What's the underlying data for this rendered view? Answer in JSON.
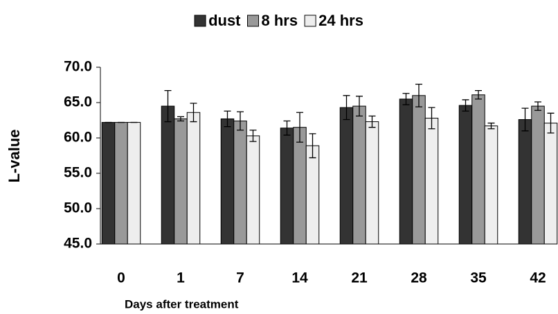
{
  "chart_data": {
    "type": "bar",
    "x_label": "Days after treatment",
    "y_label": "L-value",
    "categories": [
      "0",
      "1",
      "7",
      "14",
      "21",
      "28",
      "35",
      "42"
    ],
    "series": [
      {
        "name": "dust",
        "color": "#333333",
        "values": [
          62.2,
          64.5,
          62.7,
          61.4,
          64.3,
          65.5,
          64.6,
          62.6
        ],
        "errors": [
          0,
          2.2,
          1.1,
          1.0,
          1.7,
          0.8,
          0.8,
          1.6
        ]
      },
      {
        "name": "8 hrs",
        "color": "#999999",
        "values": [
          62.2,
          62.7,
          62.4,
          61.5,
          64.5,
          66.0,
          66.1,
          64.5
        ],
        "errors": [
          0,
          0.3,
          1.3,
          2.1,
          1.4,
          1.6,
          0.6,
          0.6
        ]
      },
      {
        "name": "24 hrs",
        "color": "#eeeeee",
        "values": [
          62.2,
          63.6,
          60.3,
          58.9,
          62.3,
          62.8,
          61.7,
          62.1
        ],
        "errors": [
          0,
          1.3,
          0.8,
          1.7,
          0.8,
          1.5,
          0.4,
          1.4
        ]
      }
    ],
    "ylim": [
      45,
      70
    ],
    "yticks": [
      {
        "value": 45,
        "label": "45.0"
      },
      {
        "value": 50,
        "label": "50.0"
      },
      {
        "value": 55,
        "label": "55.0"
      },
      {
        "value": 60,
        "label": "60.0"
      },
      {
        "value": 65,
        "label": "65.0"
      },
      {
        "value": 70,
        "label": "70.0"
      }
    ],
    "grid": false,
    "legend": "top"
  }
}
